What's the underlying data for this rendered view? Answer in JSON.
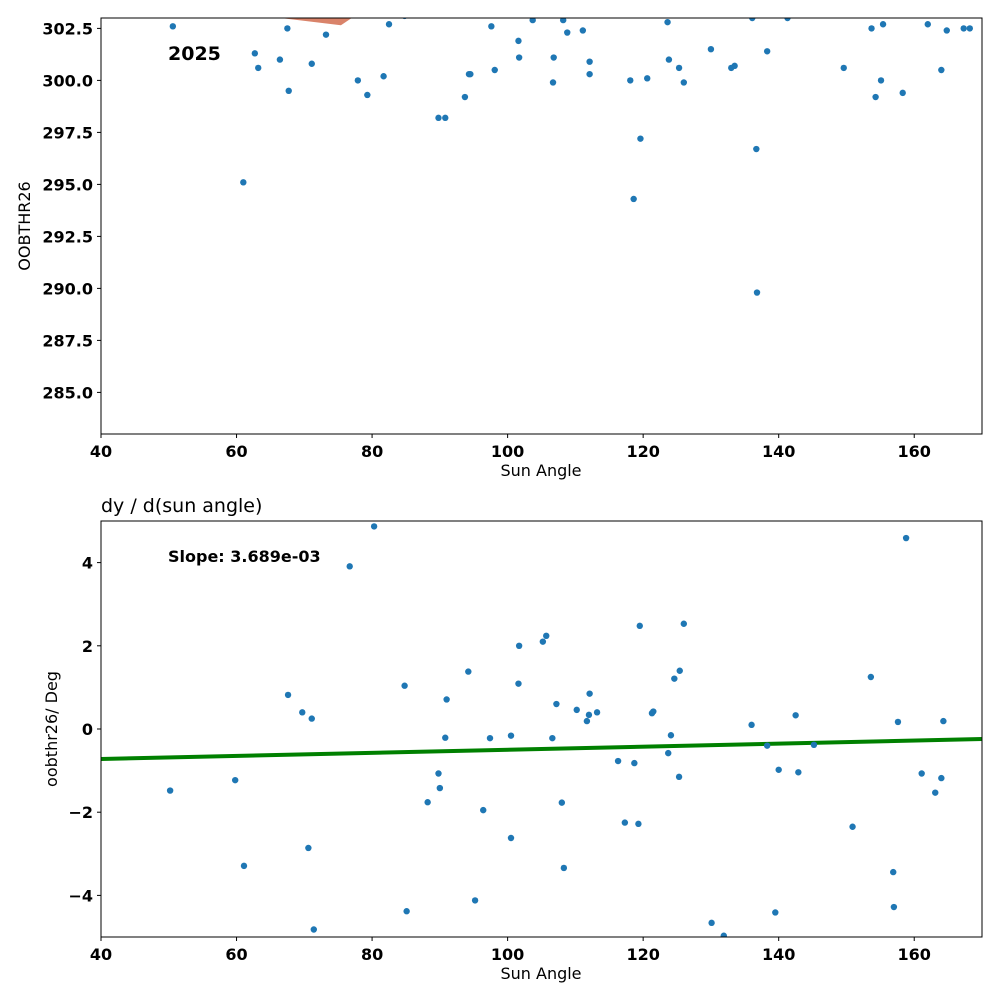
{
  "chart_data": [
    {
      "type": "scatter",
      "title": "",
      "xlabel": "Sun Angle",
      "ylabel": "OOBTHR26",
      "xlim": [
        40,
        170
      ],
      "ylim": [
        283,
        303.0
      ],
      "xticks": [
        40,
        60,
        80,
        100,
        120,
        140,
        160
      ],
      "yticks": [
        285.0,
        287.5,
        290.0,
        292.5,
        295.0,
        297.5,
        300.0,
        302.5
      ],
      "xtick_labels": [
        "40",
        "60",
        "80",
        "100",
        "120",
        "140",
        "160"
      ],
      "ytick_labels": [
        "285.0",
        "287.5",
        "290.0",
        "292.5",
        "295.0",
        "297.5",
        "300.0",
        "302.5"
      ],
      "annotation": "2025",
      "grid": false,
      "point_color": "#1f77b4",
      "overlay_color": "#d9836a",
      "overlay_polygon": [
        [
          66.5,
          303.0
        ],
        [
          75.4,
          302.65
        ],
        [
          77.0,
          303.0
        ]
      ],
      "points": [
        [
          50.6,
          302.6
        ],
        [
          61.0,
          295.1
        ],
        [
          62.7,
          301.3
        ],
        [
          63.2,
          300.6
        ],
        [
          66.4,
          301.0
        ],
        [
          67.5,
          302.5
        ],
        [
          67.7,
          299.5
        ],
        [
          71.1,
          300.8
        ],
        [
          73.2,
          302.2
        ],
        [
          77.9,
          300.0
        ],
        [
          79.3,
          299.3
        ],
        [
          81.7,
          300.2
        ],
        [
          82.5,
          302.7
        ],
        [
          84.8,
          303.1
        ],
        [
          89.8,
          298.2
        ],
        [
          90.8,
          298.2
        ],
        [
          93.7,
          299.2
        ],
        [
          94.3,
          300.3
        ],
        [
          94.5,
          300.3
        ],
        [
          97.6,
          302.6
        ],
        [
          98.1,
          300.5
        ],
        [
          101.6,
          301.9
        ],
        [
          101.7,
          301.1
        ],
        [
          103.7,
          302.9
        ],
        [
          106.7,
          299.9
        ],
        [
          106.8,
          301.1
        ],
        [
          108.2,
          302.9
        ],
        [
          108.8,
          302.3
        ],
        [
          111.1,
          302.4
        ],
        [
          112.1,
          300.9
        ],
        [
          112.1,
          300.3
        ],
        [
          118.1,
          300.0
        ],
        [
          118.6,
          294.3
        ],
        [
          119.6,
          297.2
        ],
        [
          120.6,
          300.1
        ],
        [
          123.6,
          302.8
        ],
        [
          123.8,
          301.0
        ],
        [
          125.3,
          300.6
        ],
        [
          126.0,
          299.9
        ],
        [
          130.0,
          301.5
        ],
        [
          133.0,
          300.6
        ],
        [
          133.5,
          300.7
        ],
        [
          136.1,
          303.0
        ],
        [
          136.7,
          296.7
        ],
        [
          136.8,
          289.8
        ],
        [
          138.3,
          301.4
        ],
        [
          141.3,
          303.0
        ],
        [
          149.6,
          300.6
        ],
        [
          153.7,
          302.5
        ],
        [
          154.3,
          299.2
        ],
        [
          155.1,
          300.0
        ],
        [
          155.4,
          302.7
        ],
        [
          158.3,
          299.4
        ],
        [
          162.0,
          302.7
        ],
        [
          164.0,
          300.5
        ],
        [
          164.8,
          302.4
        ],
        [
          167.3,
          302.5
        ],
        [
          168.2,
          302.5
        ]
      ]
    },
    {
      "type": "scatter",
      "title": "dy / d(sun angle)",
      "xlabel": "Sun Angle",
      "ylabel": "oobthr26/ Deg",
      "xlim": [
        40,
        170
      ],
      "ylim": [
        -5,
        5
      ],
      "xticks": [
        40,
        60,
        80,
        100,
        120,
        140,
        160
      ],
      "yticks": [
        -4,
        -2,
        0,
        2,
        4
      ],
      "xtick_labels": [
        "40",
        "60",
        "80",
        "100",
        "120",
        "140",
        "160"
      ],
      "ytick_labels": [
        "−4",
        "−2",
        "0",
        "2",
        "4"
      ],
      "annotation": "Slope: 3.689e-03",
      "grid": false,
      "point_color": "#1f77b4",
      "fit_line": {
        "color": "#008000",
        "x": [
          40,
          170
        ],
        "y": [
          -0.72,
          -0.24
        ]
      },
      "points": [
        [
          50.2,
          -1.48
        ],
        [
          59.8,
          -1.23
        ],
        [
          61.1,
          -3.29
        ],
        [
          67.6,
          0.82
        ],
        [
          69.7,
          0.4
        ],
        [
          70.6,
          -2.86
        ],
        [
          71.1,
          0.25
        ],
        [
          71.4,
          -4.82
        ],
        [
          76.7,
          3.91
        ],
        [
          80.3,
          4.87
        ],
        [
          84.8,
          1.04
        ],
        [
          85.1,
          -4.38
        ],
        [
          88.2,
          -1.76
        ],
        [
          89.8,
          -1.07
        ],
        [
          90.0,
          -1.42
        ],
        [
          90.8,
          -0.21
        ],
        [
          91.0,
          0.71
        ],
        [
          94.2,
          1.38
        ],
        [
          95.2,
          -4.12
        ],
        [
          96.4,
          -1.95
        ],
        [
          97.4,
          -0.22
        ],
        [
          100.5,
          -0.16
        ],
        [
          100.5,
          -2.62
        ],
        [
          101.6,
          1.09
        ],
        [
          101.7,
          2.0
        ],
        [
          105.2,
          2.1
        ],
        [
          105.7,
          2.24
        ],
        [
          106.6,
          -0.22
        ],
        [
          107.2,
          0.6
        ],
        [
          108.0,
          -1.77
        ],
        [
          108.3,
          -3.34
        ],
        [
          110.2,
          0.46
        ],
        [
          111.7,
          0.19
        ],
        [
          112.0,
          0.34
        ],
        [
          112.1,
          0.85
        ],
        [
          113.2,
          0.4
        ],
        [
          116.3,
          -0.77
        ],
        [
          117.3,
          -2.25
        ],
        [
          118.7,
          -0.82
        ],
        [
          119.3,
          -2.28
        ],
        [
          119.5,
          2.48
        ],
        [
          121.3,
          0.38
        ],
        [
          121.5,
          0.42
        ],
        [
          123.7,
          -0.58
        ],
        [
          124.1,
          -0.15
        ],
        [
          124.6,
          1.21
        ],
        [
          125.3,
          -1.15
        ],
        [
          125.4,
          1.4
        ],
        [
          126.0,
          2.53
        ],
        [
          130.1,
          -4.66
        ],
        [
          131.9,
          -4.97
        ],
        [
          136.0,
          0.1
        ],
        [
          138.3,
          -0.4
        ],
        [
          139.5,
          -4.41
        ],
        [
          140.0,
          -0.98
        ],
        [
          142.5,
          0.33
        ],
        [
          142.9,
          -1.04
        ],
        [
          145.2,
          -0.38
        ],
        [
          150.9,
          -2.35
        ],
        [
          153.6,
          1.25
        ],
        [
          156.9,
          -3.44
        ],
        [
          157.0,
          -4.28
        ],
        [
          157.6,
          0.17
        ],
        [
          158.8,
          4.59
        ],
        [
          161.1,
          -1.07
        ],
        [
          163.1,
          -1.53
        ],
        [
          164.0,
          -1.18
        ],
        [
          164.3,
          0.19
        ]
      ]
    }
  ]
}
